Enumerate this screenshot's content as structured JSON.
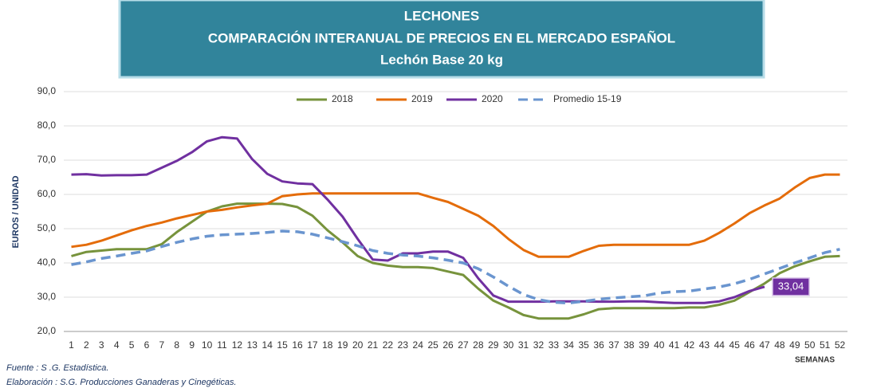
{
  "chart_data": {
    "type": "line",
    "title_lines": [
      "LECHONES",
      "COMPARACIÓN INTERANUAL DE PRECIOS EN EL MERCADO ESPAÑOL",
      "Lechón Base 20 kg"
    ],
    "y_label": "EUROS / UNIDAD",
    "x_label": "SEMANAS",
    "notes": [
      "Fuente :  S .G. Estadística.",
      "Elaboración : S.G. Producciones Ganaderas y Cinegéticas."
    ],
    "categories": [
      "1",
      "2",
      "3",
      "4",
      "5",
      "6",
      "7",
      "8",
      "9",
      "10",
      "11",
      "12",
      "13",
      "14",
      "15",
      "16",
      "17",
      "18",
      "19",
      "20",
      "21",
      "22",
      "23",
      "24",
      "25",
      "26",
      "27",
      "28",
      "29",
      "30",
      "31",
      "32",
      "33",
      "34",
      "35",
      "36",
      "37",
      "38",
      "39",
      "40",
      "41",
      "42",
      "43",
      "44",
      "45",
      "46",
      "47",
      "48",
      "49",
      "50",
      "51",
      "52"
    ],
    "series": [
      {
        "name": "2018",
        "color": "#77933c",
        "dashed": false,
        "values": [
          42,
          43.2,
          43.6,
          44,
          44,
          44,
          45.5,
          49,
          52,
          55,
          56.5,
          57.3,
          57.3,
          57.3,
          57.2,
          56.3,
          53.8,
          49.5,
          46,
          42,
          40,
          39.2,
          38.8,
          38.8,
          38.5,
          37.5,
          36.5,
          32.5,
          29,
          27,
          24.8,
          23.8,
          23.8,
          23.8,
          25,
          26.5,
          26.8,
          26.8,
          26.8,
          26.8,
          26.8,
          27,
          27,
          27.8,
          29,
          31.5,
          34,
          37,
          39,
          40.5,
          41.8,
          42
        ]
      },
      {
        "name": "2019",
        "color": "#e46c0a",
        "dashed": false,
        "values": [
          44.7,
          45.3,
          46.5,
          48,
          49.5,
          50.8,
          51.8,
          53,
          54,
          55,
          55.5,
          56.2,
          56.8,
          57.3,
          59.5,
          60,
          60.3,
          60.3,
          60.3,
          60.3,
          60.3,
          60.3,
          60.3,
          60.3,
          59,
          57.8,
          55.8,
          53.8,
          50.8,
          47,
          43.8,
          41.8,
          41.8,
          41.8,
          43.5,
          45,
          45.3,
          45.3,
          45.3,
          45.3,
          45.3,
          45.3,
          46.5,
          48.8,
          51.5,
          54.5,
          56.8,
          58.8,
          62,
          64.8,
          65.8,
          65.8
        ]
      },
      {
        "name": "2020",
        "color": "#7030a0",
        "dashed": false,
        "values": [
          65.8,
          65.9,
          65.5,
          65.6,
          65.6,
          65.8,
          67.8,
          69.8,
          72.3,
          75.5,
          76.7,
          76.3,
          70.3,
          66,
          63.8,
          63.2,
          63,
          58.5,
          53.5,
          47,
          41,
          40.7,
          42.8,
          42.8,
          43.3,
          43.3,
          41.5,
          35.5,
          30.5,
          28.7,
          28.7,
          28.7,
          28.8,
          28.8,
          28.8,
          28.7,
          28.7,
          28.8,
          28.8,
          28.5,
          28.3,
          28.3,
          28.3,
          28.8,
          30,
          31.8,
          33.04,
          null,
          null,
          null,
          null,
          null
        ],
        "value_labels": [
          null,
          null,
          null,
          null,
          null,
          null,
          null,
          null,
          null,
          null,
          null,
          null,
          null,
          null,
          null,
          null,
          null,
          null,
          null,
          null,
          null,
          null,
          null,
          null,
          null,
          null,
          null,
          null,
          null,
          null,
          null,
          null,
          null,
          null,
          null,
          null,
          null,
          null,
          null,
          null,
          null,
          null,
          null,
          null,
          null,
          null,
          "33,04",
          null,
          null,
          null,
          null,
          null
        ]
      },
      {
        "name": "Promedio 15-19",
        "color": "#6a95cf",
        "dashed": true,
        "values": [
          39.5,
          40.3,
          41.3,
          42,
          42.8,
          43.5,
          44.8,
          46,
          47,
          47.8,
          48.2,
          48.4,
          48.6,
          48.9,
          49.3,
          49.1,
          48.4,
          47.3,
          46.2,
          45,
          43.6,
          42.8,
          42.3,
          42,
          41.5,
          40.8,
          40,
          38.3,
          35.9,
          33.2,
          30.8,
          29.3,
          28.5,
          28.3,
          28.8,
          29.4,
          29.8,
          30.1,
          30.4,
          31.2,
          31.6,
          31.8,
          32.4,
          33,
          33.9,
          35.2,
          36.8,
          38.4,
          40,
          41.5,
          43,
          44
        ]
      }
    ],
    "ylim": [
      20,
      90
    ],
    "yticks": [
      {
        "value": 20,
        "label": "20,0"
      },
      {
        "value": 30,
        "label": "30,0"
      },
      {
        "value": 40,
        "label": "40,0"
      },
      {
        "value": 50,
        "label": "50,0"
      },
      {
        "value": 60,
        "label": "60,0"
      },
      {
        "value": 70,
        "label": "70,0"
      },
      {
        "value": 80,
        "label": "80,0"
      },
      {
        "value": 90,
        "label": "90,0"
      }
    ],
    "grid": true,
    "legend": "top"
  }
}
